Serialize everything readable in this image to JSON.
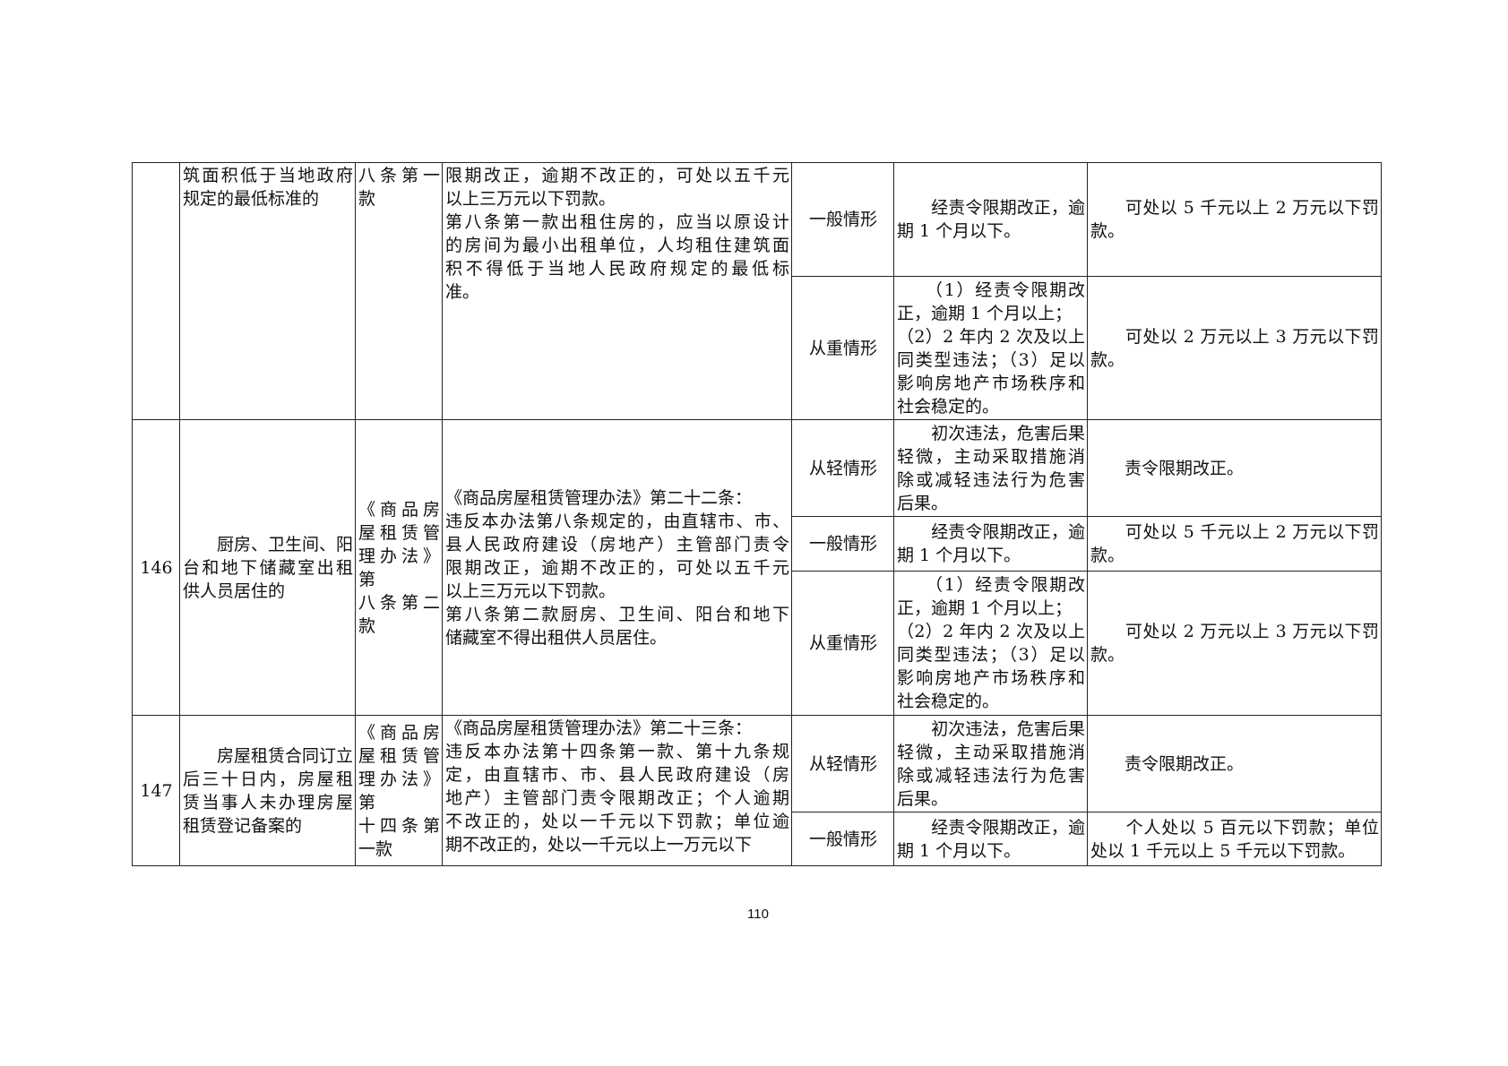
{
  "rows": [
    {
      "no": "",
      "item": [
        "筑面积低于当地政府",
        "规定的最低标准的"
      ],
      "basis": [
        "八条第一",
        "款"
      ],
      "law": [
        "限期改正，逾期不改正的，可处以五千元",
        "以上三万元以下罚款。",
        "第八条第一款出租住房的，应当以原设计",
        "的房间为最小出租单位，人均租住建筑面",
        "积不得低于当地人民政府规定的最低标",
        "准。"
      ],
      "levels": [
        {
          "level": "一般情形",
          "facts": [
            "　　经责令限期改正，逾",
            "期 1 个月以下。"
          ],
          "penalty": [
            "　　可处以 5 千元以上 2 万元以下罚",
            "款。"
          ]
        },
        {
          "level": "从重情形",
          "facts": [
            "　　（1）经责令限期改",
            "正，逾期 1 个月以上；",
            "（2）2 年内 2 次及以上",
            "同类型违法；（3）足以",
            "影响房地产市场秩序和",
            "社会稳定的。"
          ],
          "penalty": [
            "　　可处以 2 万元以上 3 万元以下罚",
            "款。"
          ]
        }
      ]
    },
    {
      "no": "146",
      "item": [
        "　　厨房、卫生间、阳",
        "台和地下储藏室出租",
        "供人员居住的"
      ],
      "basis": [
        "《商品房",
        "屋租赁管",
        "理办法》第",
        "八条第二",
        "款"
      ],
      "law": [
        "《商品房屋租赁管理办法》第二十二条：",
        "违反本办法第八条规定的，由直辖市、市、",
        "县人民政府建设（房地产）主管部门责令",
        "限期改正，逾期不改正的，可处以五千元",
        "以上三万元以下罚款。",
        "第八条第二款厨房、卫生间、阳台和地下",
        "储藏室不得出租供人员居住。"
      ],
      "levels": [
        {
          "level": "从轻情形",
          "facts": [
            "　　初次违法，危害后果",
            "轻微，主动采取措施消",
            "除或减轻违法行为危害",
            "后果。"
          ],
          "penalty": [
            "　　责令限期改正。"
          ]
        },
        {
          "level": "一般情形",
          "facts": [
            "　　经责令限期改正，逾",
            "期 1 个月以下。"
          ],
          "penalty": [
            "　　可处以 5 千元以上 2 万元以下罚",
            "款。"
          ]
        },
        {
          "level": "从重情形",
          "facts": [
            "　　（1）经责令限期改",
            "正，逾期 1 个月以上；",
            "（2）2 年内 2 次及以上",
            "同类型违法；（3）足以",
            "影响房地产市场秩序和",
            "社会稳定的。"
          ],
          "penalty": [
            "　　可处以 2 万元以上 3 万元以下罚",
            "款。"
          ]
        }
      ]
    },
    {
      "no": "147",
      "item": [
        "　　房屋租赁合同订立",
        "后三十日内，房屋租",
        "赁当事人未办理房屋",
        "租赁登记备案的"
      ],
      "basis": [
        "《商品房",
        "屋租赁管",
        "理办法》第",
        "十四条第",
        "一款"
      ],
      "law": [
        "《商品房屋租赁管理办法》第二十三条：",
        "违反本办法第十四条第一款、第十九条规",
        "定，由直辖市、市、县人民政府建设（房",
        "地产）主管部门责令限期改正；个人逾期",
        "不改正的，处以一千元以下罚款；单位逾",
        "期不改正的，处以一千元以上一万元以下"
      ],
      "levels": [
        {
          "level": "从轻情形",
          "facts": [
            "　　初次违法，危害后果",
            "轻微，主动采取措施消",
            "除或减轻违法行为危害",
            "后果。"
          ],
          "penalty": [
            "　　责令限期改正。"
          ]
        },
        {
          "level": "一般情形",
          "facts": [
            "　　经责令限期改正，逾",
            "期 1 个月以下。"
          ],
          "penalty": [
            "　　个人处以 5 百元以下罚款；单位",
            "处以 1 千元以上 5 千元以下罚款。"
          ]
        }
      ]
    }
  ],
  "page_number": "110"
}
